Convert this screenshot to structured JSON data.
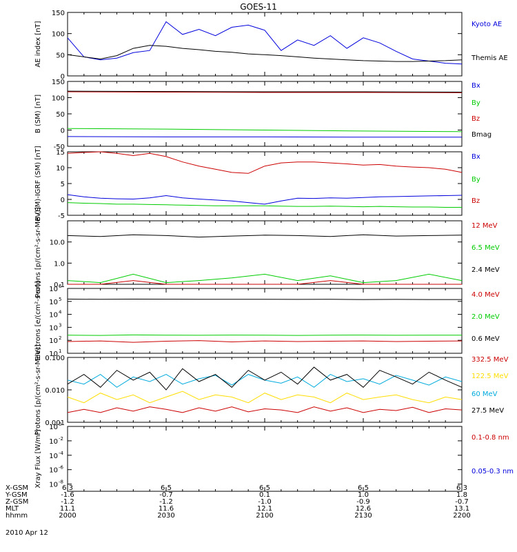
{
  "title": "GOES-11",
  "date_label": "2010 Apr 12",
  "ephemeris": {
    "row_labels": [
      "X-GSM",
      "Y-GSM",
      "Z-GSM",
      "MLT",
      "hhmm"
    ],
    "columns": [
      [
        "6.3",
        "-1.6",
        "-1.2",
        "11.1",
        "2000"
      ],
      [
        "6.5",
        "-0.7",
        "-1.2",
        "11.6",
        "2030"
      ],
      [
        "6.5",
        "0.1",
        "-1.0",
        "12.1",
        "2100"
      ],
      [
        "6.5",
        "1.0",
        "-0.9",
        "12.6",
        "2130"
      ],
      [
        "6.3",
        "1.8",
        "-0.7",
        "13.1",
        "2200"
      ]
    ]
  },
  "chart_data": [
    {
      "type": "line",
      "ylabel": "AE index [nT]",
      "ylim": [
        0,
        150
      ],
      "yticks": [
        0,
        50,
        100,
        150
      ],
      "tick_labels": [
        "0",
        "50",
        "100",
        "150"
      ],
      "x": [
        "2000",
        "2005",
        "2010",
        "2015",
        "2020",
        "2025",
        "2030",
        "2035",
        "2040",
        "2045",
        "2050",
        "2055",
        "2100",
        "2105",
        "2110",
        "2115",
        "2120",
        "2125",
        "2130",
        "2135",
        "2140",
        "2145",
        "2150",
        "2155",
        "2200"
      ],
      "series": [
        {
          "name": "Kyoto AE",
          "color": "#0000dd",
          "values": [
            90,
            45,
            38,
            42,
            55,
            60,
            128,
            98,
            110,
            95,
            115,
            120,
            108,
            60,
            85,
            72,
            95,
            65,
            90,
            78,
            58,
            40,
            35,
            30,
            28
          ]
        },
        {
          "name": "Themis AE",
          "color": "#000000",
          "values": [
            50,
            45,
            40,
            48,
            65,
            72,
            70,
            65,
            62,
            58,
            56,
            52,
            50,
            48,
            45,
            42,
            40,
            38,
            36,
            35,
            34,
            34,
            35,
            36,
            38
          ]
        }
      ]
    },
    {
      "type": "line",
      "ylabel": "B (SM) [nT]",
      "ylim": [
        -50,
        150
      ],
      "yticks": [
        -50,
        0,
        50,
        100,
        150
      ],
      "tick_labels": [
        "-50",
        "0",
        "50",
        "100",
        "150"
      ],
      "x": [
        "2000",
        "2030",
        "2100",
        "2130",
        "2200"
      ],
      "series": [
        {
          "name": "Bx",
          "color": "#0000dd",
          "values": [
            -20,
            -21,
            -21,
            -22,
            -22
          ]
        },
        {
          "name": "By",
          "color": "#00cc00",
          "values": [
            5,
            3,
            0,
            -3,
            -5
          ]
        },
        {
          "name": "Bz",
          "color": "#cc0000",
          "values": [
            118,
            117,
            116,
            116,
            115
          ]
        },
        {
          "name": "Bmag",
          "color": "#000000",
          "values": [
            120,
            119,
            118,
            118,
            117
          ]
        }
      ]
    },
    {
      "type": "line",
      "ylabel": "B (SM)-IGRF (SM) [nT]",
      "ylim": [
        -5,
        15
      ],
      "yticks": [
        -5,
        0,
        5,
        10,
        15
      ],
      "tick_labels": [
        "-5",
        "0",
        "5",
        "10",
        "15"
      ],
      "x": [
        "2000",
        "2005",
        "2010",
        "2015",
        "2020",
        "2025",
        "2030",
        "2035",
        "2040",
        "2045",
        "2050",
        "2055",
        "2100",
        "2105",
        "2110",
        "2115",
        "2120",
        "2125",
        "2130",
        "2135",
        "2140",
        "2145",
        "2150",
        "2155",
        "2200"
      ],
      "series": [
        {
          "name": "Bx",
          "color": "#0000dd",
          "values": [
            1.5,
            0.8,
            0.4,
            0.2,
            0.1,
            0.5,
            1.2,
            0.5,
            0.1,
            -0.2,
            -0.5,
            -1.0,
            -1.5,
            -0.5,
            0.4,
            0.3,
            0.5,
            0.4,
            0.6,
            0.8,
            0.9,
            1.0,
            1.1,
            1.2,
            1.3
          ]
        },
        {
          "name": "By",
          "color": "#00cc00",
          "values": [
            -1.0,
            -1.2,
            -1.3,
            -1.5,
            -1.5,
            -1.6,
            -1.7,
            -1.8,
            -1.9,
            -2.0,
            -2.0,
            -2.0,
            -2.0,
            -2.1,
            -2.2,
            -2.2,
            -2.1,
            -2.2,
            -2.3,
            -2.2,
            -2.3,
            -2.4,
            -2.4,
            -2.5,
            -2.5
          ]
        },
        {
          "name": "Bz",
          "color": "#cc0000",
          "values": [
            14.5,
            14.8,
            15.0,
            14.5,
            13.8,
            14.5,
            13.5,
            11.8,
            10.5,
            9.5,
            8.5,
            8.2,
            10.5,
            11.5,
            11.8,
            11.8,
            11.5,
            11.2,
            10.8,
            11.0,
            10.5,
            10.2,
            10.0,
            9.5,
            8.5
          ]
        }
      ]
    },
    {
      "type": "line",
      "ylabel": "Protons [p/(cm²-s-sr-MeV)]",
      "yscale": "log",
      "ylim": [
        0.1,
        100
      ],
      "yticks": [
        0.1,
        1,
        10
      ],
      "tick_labels": [
        "0.1",
        "1.0",
        "10.0"
      ],
      "x": [
        "2000",
        "2010",
        "2020",
        "2030",
        "2040",
        "2050",
        "2100",
        "2110",
        "2120",
        "2130",
        "2140",
        "2150",
        "2200"
      ],
      "series": [
        {
          "name": "12 MeV",
          "color": "#cc0000",
          "values": [
            0.1,
            0.1,
            0.15,
            0.1,
            0.1,
            0.1,
            0.1,
            0.1,
            0.15,
            0.1,
            0.1,
            0.1,
            0.1
          ]
        },
        {
          "name": "6.5 MeV",
          "color": "#00cc00",
          "values": [
            0.15,
            0.12,
            0.3,
            0.12,
            0.15,
            0.2,
            0.3,
            0.15,
            0.25,
            0.12,
            0.15,
            0.3,
            0.15
          ]
        },
        {
          "name": "2.4 MeV",
          "color": "#000000",
          "values": [
            20,
            18,
            22,
            20,
            17,
            19,
            21,
            20,
            18,
            22,
            19,
            20,
            21
          ]
        }
      ]
    },
    {
      "type": "line",
      "ylabel": "Electrons [e/(cm²-s-sr)]",
      "yscale": "log",
      "ylim": [
        10,
        1000000
      ],
      "ytick_exponents": [
        1,
        2,
        3,
        4,
        5,
        6
      ],
      "tick_mantissa": "10",
      "x": [
        "2000",
        "2010",
        "2020",
        "2030",
        "2040",
        "2050",
        "2100",
        "2110",
        "2120",
        "2130",
        "2140",
        "2150",
        "2200"
      ],
      "series": [
        {
          "name": "4.0 MeV",
          "color": "#cc0000",
          "values": [
            80,
            90,
            70,
            85,
            95,
            75,
            90,
            80,
            85,
            90,
            80,
            85,
            90
          ]
        },
        {
          "name": "2.0 MeV",
          "color": "#00cc00",
          "values": [
            250,
            240,
            260,
            250,
            245,
            255,
            250,
            240,
            250,
            255,
            245,
            250,
            250
          ]
        },
        {
          "name": "0.6 MeV",
          "color": "#000000",
          "values": [
            150000,
            145000,
            150000,
            148000,
            145000,
            147000,
            145000,
            142000,
            145000,
            140000,
            142000,
            140000,
            140000
          ]
        }
      ]
    },
    {
      "type": "line",
      "ylabel": "Protons [p/(cm²-s-sr-MeV)]",
      "yscale": "log",
      "ylim": [
        0.001,
        0.1
      ],
      "yticks": [
        0.001,
        0.01,
        0.1
      ],
      "tick_labels": [
        "0.001",
        "0.010",
        "0.100"
      ],
      "x": [
        "2000",
        "2005",
        "2010",
        "2015",
        "2020",
        "2025",
        "2030",
        "2035",
        "2040",
        "2045",
        "2050",
        "2055",
        "2100",
        "2105",
        "2110",
        "2115",
        "2120",
        "2125",
        "2130",
        "2135",
        "2140",
        "2145",
        "2150",
        "2155",
        "2200"
      ],
      "series": [
        {
          "name": "332.5 MeV",
          "color": "#cc0000",
          "values": [
            0.002,
            0.0025,
            0.002,
            0.0028,
            0.0022,
            0.003,
            0.0025,
            0.002,
            0.0028,
            0.0022,
            0.003,
            0.0021,
            0.0026,
            0.0024,
            0.002,
            0.003,
            0.0022,
            0.0028,
            0.002,
            0.0025,
            0.0023,
            0.0029,
            0.002,
            0.0026,
            0.0024
          ]
        },
        {
          "name": "122.5 MeV",
          "color": "#ffdd00",
          "values": [
            0.006,
            0.004,
            0.008,
            0.005,
            0.007,
            0.004,
            0.006,
            0.009,
            0.005,
            0.007,
            0.006,
            0.004,
            0.008,
            0.005,
            0.007,
            0.006,
            0.004,
            0.008,
            0.005,
            0.006,
            0.007,
            0.005,
            0.004,
            0.006,
            0.005
          ]
        },
        {
          "name": "60 MeV",
          "color": "#00aadd",
          "values": [
            0.02,
            0.015,
            0.03,
            0.012,
            0.025,
            0.018,
            0.03,
            0.015,
            0.022,
            0.028,
            0.014,
            0.03,
            0.02,
            0.016,
            0.025,
            0.012,
            0.03,
            0.018,
            0.022,
            0.015,
            0.028,
            0.02,
            0.014,
            0.025,
            0.018
          ]
        },
        {
          "name": "27.5 MeV",
          "color": "#000000",
          "values": [
            0.015,
            0.03,
            0.012,
            0.04,
            0.02,
            0.035,
            0.01,
            0.045,
            0.018,
            0.03,
            0.012,
            0.04,
            0.02,
            0.035,
            0.015,
            0.05,
            0.02,
            0.03,
            0.012,
            0.04,
            0.025,
            0.015,
            0.035,
            0.02,
            0.012
          ]
        }
      ]
    },
    {
      "type": "line",
      "ylabel": "Xray Flux [W/m²]",
      "yscale": "log",
      "ylim": [
        1e-09,
        1
      ],
      "ytick_exponents": [
        0,
        -2,
        -4,
        -6,
        -8
      ],
      "tick_mantissa": "10",
      "series": [
        {
          "name": "0.1-0.8 nm",
          "color": "#cc0000",
          "values": []
        },
        {
          "name": "0.05-0.3 nm",
          "color": "#0000dd",
          "values": []
        }
      ]
    }
  ]
}
